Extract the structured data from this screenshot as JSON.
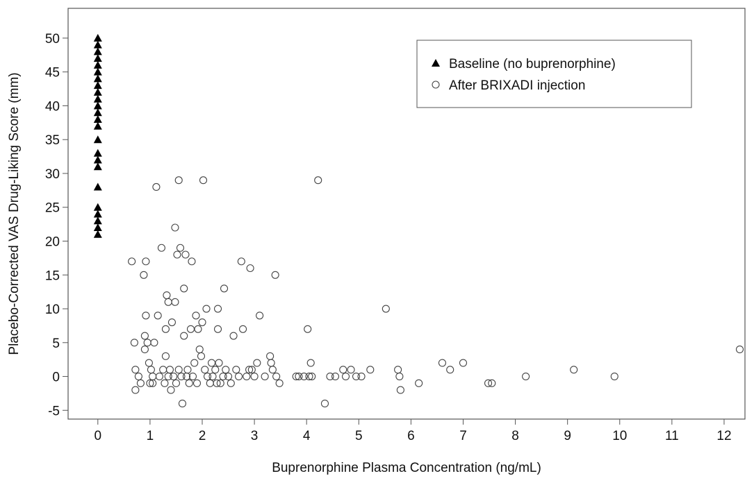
{
  "chart_data": {
    "type": "scatter",
    "xlabel": "Buprenorphine Plasma Concentration (ng/mL)",
    "ylabel": "Placebo-Corrected VAS Drug-Liking Score (mm)",
    "xlim": [
      -0.57,
      12.4
    ],
    "ylim": [
      -6.3,
      54.4
    ],
    "xticks": [
      0,
      1,
      2,
      3,
      4,
      5,
      6,
      7,
      8,
      9,
      10,
      11,
      12
    ],
    "yticks": [
      -5,
      0,
      5,
      10,
      15,
      20,
      25,
      30,
      35,
      40,
      45,
      50
    ],
    "legend": "upper right",
    "series": [
      {
        "name": "Baseline (no buprenorphine)",
        "color": "#000000",
        "marker": "triangle",
        "x": [
          0,
          0,
          0,
          0,
          0,
          0,
          0,
          0,
          0,
          0,
          0,
          0,
          0,
          0,
          0,
          0,
          0,
          0,
          0,
          0,
          0,
          0,
          0,
          0
        ],
        "values": [
          21,
          22,
          23,
          24,
          25,
          28,
          31,
          32,
          33,
          35,
          37,
          38,
          39,
          40,
          41,
          42,
          43,
          44,
          45,
          46,
          47,
          48,
          49,
          50
        ]
      },
      {
        "name": "After BRIXADI injection",
        "color": "#444444",
        "marker": "circle",
        "x": [
          0.65,
          0.7,
          0.72,
          0.72,
          0.78,
          0.82,
          0.88,
          0.9,
          0.9,
          0.92,
          0.92,
          0.95,
          0.98,
          1.0,
          1.02,
          1.05,
          1.05,
          1.08,
          1.12,
          1.15,
          1.18,
          1.22,
          1.25,
          1.28,
          1.3,
          1.3,
          1.32,
          1.35,
          1.35,
          1.38,
          1.4,
          1.42,
          1.45,
          1.48,
          1.48,
          1.5,
          1.52,
          1.55,
          1.55,
          1.58,
          1.6,
          1.62,
          1.65,
          1.65,
          1.68,
          1.7,
          1.72,
          1.75,
          1.78,
          1.8,
          1.82,
          1.85,
          1.88,
          1.9,
          1.92,
          1.95,
          1.98,
          2.0,
          2.02,
          2.05,
          2.08,
          2.1,
          2.15,
          2.18,
          2.2,
          2.25,
          2.28,
          2.3,
          2.3,
          2.32,
          2.35,
          2.4,
          2.42,
          2.45,
          2.5,
          2.55,
          2.6,
          2.65,
          2.7,
          2.75,
          2.78,
          2.85,
          2.9,
          2.92,
          2.95,
          3.0,
          3.05,
          3.1,
          3.2,
          3.3,
          3.32,
          3.35,
          3.4,
          3.42,
          3.48,
          3.8,
          3.85,
          3.95,
          4.02,
          4.05,
          4.08,
          4.1,
          4.22,
          4.35,
          4.45,
          4.55,
          4.7,
          4.75,
          4.85,
          4.95,
          5.05,
          5.22,
          5.52,
          5.75,
          5.78,
          5.8,
          6.15,
          6.6,
          6.75,
          7.0,
          7.48,
          7.55,
          8.2,
          9.12,
          9.9,
          12.3
        ],
        "values": [
          17,
          5,
          1,
          -2,
          0,
          -1,
          15,
          6,
          4,
          17,
          9,
          5,
          2,
          -1,
          1,
          0,
          -1,
          5,
          28,
          9,
          0,
          19,
          1,
          -1,
          3,
          7,
          12,
          11,
          0,
          1,
          -2,
          8,
          0,
          22,
          11,
          -1,
          18,
          29,
          1,
          19,
          0,
          -4,
          6,
          13,
          18,
          0,
          1,
          -1,
          7,
          17,
          0,
          2,
          9,
          -1,
          7,
          4,
          3,
          8,
          29,
          1,
          10,
          0,
          -1,
          2,
          0,
          1,
          -1,
          10,
          7,
          2,
          -1,
          0,
          13,
          1,
          0,
          -1,
          6,
          1,
          0,
          17,
          7,
          0,
          1,
          16,
          1,
          0,
          2,
          9,
          0,
          3,
          2,
          1,
          15,
          0,
          -1,
          0,
          0,
          0,
          7,
          0,
          2,
          0,
          29,
          -4,
          0,
          0,
          1,
          0,
          1,
          0,
          0,
          1,
          10,
          1,
          0,
          -2,
          -1,
          2,
          1,
          2,
          -1,
          -1,
          0,
          1,
          0,
          4
        ]
      }
    ]
  }
}
